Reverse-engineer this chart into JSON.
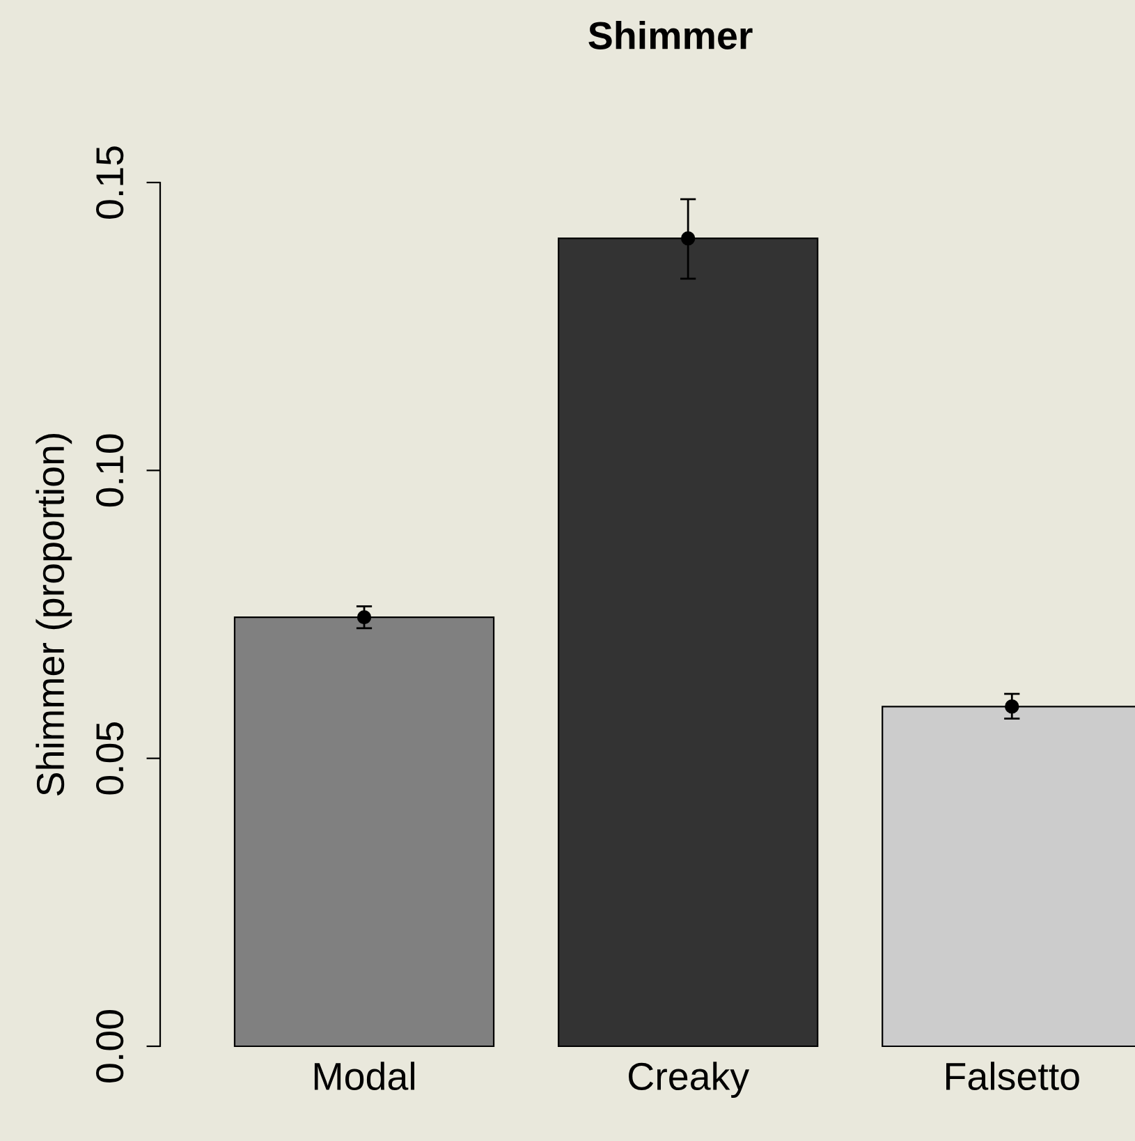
{
  "chart_data": {
    "type": "bar",
    "title": "Shimmer",
    "ylabel": "Shimmer (proportion)",
    "categories": [
      "Modal",
      "Creaky",
      "Falsetto"
    ],
    "series": [
      {
        "type": "bar",
        "values": [
          0.0745,
          0.1403,
          0.059
        ],
        "colors": [
          "#808080",
          "#333333",
          "#cccccc"
        ]
      },
      {
        "type": "scatter",
        "x": [
          "Modal",
          "Creaky",
          "Falsetto"
        ],
        "values": [
          0.0745,
          0.1403,
          0.059
        ],
        "color": "#000000",
        "errors": [
          [
            0.0726,
            0.0764
          ],
          [
            0.1333,
            0.1471
          ],
          [
            0.0569,
            0.0612
          ]
        ]
      }
    ],
    "marker": "circle",
    "ylim": [
      0,
      0.15
    ],
    "yticks": [
      {
        "value": 0,
        "label": "0.00"
      },
      {
        "value": 0.05,
        "label": "0.05"
      },
      {
        "value": 0.1,
        "label": "0.10"
      },
      {
        "value": 0.15,
        "label": "0.15"
      }
    ],
    "grid": false,
    "legend": false
  }
}
